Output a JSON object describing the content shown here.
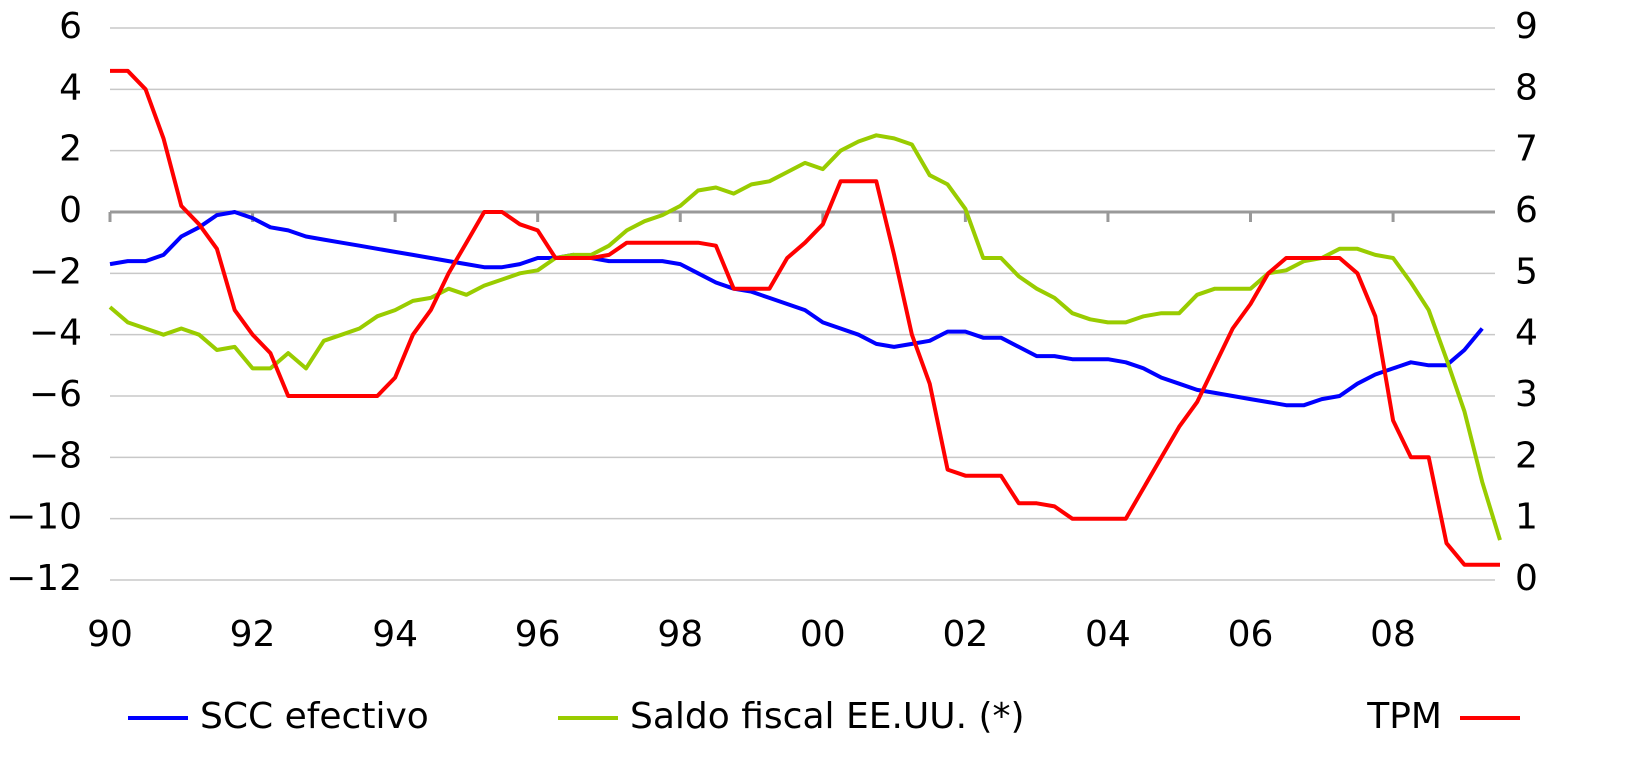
{
  "chart_data": {
    "type": "line",
    "x": [
      1990,
      1990.25,
      1990.5,
      1990.75,
      1991,
      1991.25,
      1991.5,
      1991.75,
      1992,
      1992.25,
      1992.5,
      1992.75,
      1993,
      1993.25,
      1993.5,
      1993.75,
      1994,
      1994.25,
      1994.5,
      1994.75,
      1995,
      1995.25,
      1995.5,
      1995.75,
      1996,
      1996.25,
      1996.5,
      1996.75,
      1997,
      1997.25,
      1997.5,
      1997.75,
      1998,
      1998.25,
      1998.5,
      1998.75,
      1999,
      1999.25,
      1999.5,
      1999.75,
      2000,
      2000.25,
      2000.5,
      2000.75,
      2001,
      2001.25,
      2001.5,
      2001.75,
      2002,
      2002.25,
      2002.5,
      2002.75,
      2003,
      2003.25,
      2003.5,
      2003.75,
      2004,
      2004.25,
      2004.5,
      2004.75,
      2005,
      2005.25,
      2005.5,
      2005.75,
      2006,
      2006.25,
      2006.5,
      2006.75,
      2007,
      2007.25,
      2007.5,
      2007.75,
      2008,
      2008.25,
      2008.5,
      2008.75,
      2009,
      2009.25,
      2009.5
    ],
    "series": [
      {
        "name": "SCC efectivo",
        "color": "#0000ff",
        "axis": "y",
        "values": [
          -1.7,
          -1.6,
          -1.6,
          -1.4,
          -0.8,
          -0.5,
          -0.1,
          0.0,
          -0.2,
          -0.5,
          -0.6,
          -0.8,
          -0.9,
          -1.0,
          -1.1,
          -1.2,
          -1.3,
          -1.4,
          -1.5,
          -1.6,
          -1.7,
          -1.8,
          -1.8,
          -1.7,
          -1.5,
          -1.5,
          -1.4,
          -1.5,
          -1.6,
          -1.6,
          -1.6,
          -1.6,
          -1.7,
          -2.0,
          -2.3,
          -2.5,
          -2.6,
          -2.8,
          -3.0,
          -3.2,
          -3.6,
          -3.8,
          -4.0,
          -4.3,
          -4.4,
          -4.3,
          -4.2,
          -3.9,
          -3.9,
          -4.1,
          -4.1,
          -4.4,
          -4.7,
          -4.7,
          -4.8,
          -4.8,
          -4.8,
          -4.9,
          -5.1,
          -5.4,
          -5.6,
          -5.8,
          -5.9,
          -6.0,
          -6.1,
          -6.2,
          -6.3,
          -6.3,
          -6.1,
          -6.0,
          -5.6,
          -5.3,
          -5.1,
          -4.9,
          -5.0,
          -5.0,
          -4.5,
          -3.8,
          null
        ]
      },
      {
        "name": "Saldo fiscal EE.UU. (*)",
        "color": "#99cc00",
        "axis": "y",
        "values": [
          -3.1,
          -3.6,
          -3.8,
          -4.0,
          -3.8,
          -4.0,
          -4.5,
          -4.4,
          -5.1,
          -5.1,
          -4.6,
          -5.1,
          -4.2,
          -4.0,
          -3.8,
          -3.4,
          -3.2,
          -2.9,
          -2.8,
          -2.5,
          -2.7,
          -2.4,
          -2.2,
          -2.0,
          -1.9,
          -1.5,
          -1.4,
          -1.4,
          -1.1,
          -0.6,
          -0.3,
          -0.1,
          0.2,
          0.7,
          0.8,
          0.6,
          0.9,
          1.0,
          1.3,
          1.6,
          1.4,
          2.0,
          2.3,
          2.5,
          2.4,
          2.2,
          1.2,
          0.9,
          0.1,
          -1.5,
          -1.5,
          -2.1,
          -2.5,
          -2.8,
          -3.3,
          -3.5,
          -3.6,
          -3.6,
          -3.4,
          -3.3,
          -3.3,
          -2.7,
          -2.5,
          -2.5,
          -2.5,
          -2.0,
          -1.9,
          -1.6,
          -1.5,
          -1.2,
          -1.2,
          -1.4,
          -1.5,
          -2.3,
          -3.2,
          -4.8,
          -6.5,
          -8.8,
          -10.7
        ]
      },
      {
        "name": "TPM",
        "color": "#ff0000",
        "axis": "y2",
        "values": [
          8.3,
          8.3,
          8.0,
          7.2,
          6.1,
          5.8,
          5.4,
          4.4,
          4.0,
          3.7,
          3.0,
          3.0,
          3.0,
          3.0,
          3.0,
          3.0,
          3.3,
          4.0,
          4.4,
          5.0,
          5.5,
          6.0,
          6.0,
          5.8,
          5.7,
          5.25,
          5.25,
          5.25,
          5.3,
          5.5,
          5.5,
          5.5,
          5.5,
          5.5,
          5.45,
          4.75,
          4.75,
          4.75,
          5.25,
          5.5,
          5.8,
          6.5,
          6.5,
          6.5,
          5.3,
          4.0,
          3.2,
          1.8,
          1.7,
          1.7,
          1.7,
          1.25,
          1.25,
          1.2,
          1.0,
          1.0,
          1.0,
          1.0,
          1.5,
          2.0,
          2.5,
          2.9,
          3.5,
          4.1,
          4.5,
          5.0,
          5.25,
          5.25,
          5.25,
          5.25,
          5.0,
          4.3,
          2.6,
          2.0,
          2.0,
          0.6,
          0.25,
          0.25,
          0.25
        ]
      }
    ],
    "xlim": [
      1990,
      2009.5
    ],
    "xticks": [
      {
        "value": 1990,
        "label": "90"
      },
      {
        "value": 1992,
        "label": "92"
      },
      {
        "value": 1994,
        "label": "94"
      },
      {
        "value": 1996,
        "label": "96"
      },
      {
        "value": 1998,
        "label": "98"
      },
      {
        "value": 2000,
        "label": "00"
      },
      {
        "value": 2002,
        "label": "02"
      },
      {
        "value": 2004,
        "label": "04"
      },
      {
        "value": 2006,
        "label": "06"
      },
      {
        "value": 2008,
        "label": "08"
      }
    ],
    "ylim": [
      -12,
      6
    ],
    "yticks": [
      6,
      4,
      2,
      0,
      {
        "value": -2,
        "label": "−2"
      },
      {
        "value": -4,
        "label": "−4"
      },
      {
        "value": -6,
        "label": "−6"
      },
      {
        "value": -8,
        "label": "−8"
      },
      {
        "value": -10,
        "label": "−10"
      },
      {
        "value": -12,
        "label": "−12"
      }
    ],
    "y2lim": [
      0,
      9
    ],
    "y2ticks": [
      0,
      1,
      2,
      3,
      4,
      5,
      6,
      7,
      8,
      9
    ],
    "grid": true,
    "legend": "bottom"
  }
}
